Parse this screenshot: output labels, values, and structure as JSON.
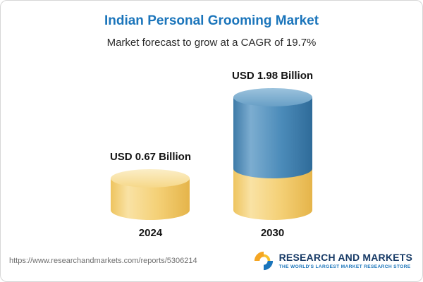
{
  "header": {
    "title": "Indian Personal Grooming Market",
    "subtitle": "Market forecast to grow at a CAGR of 19.7%"
  },
  "chart_data": {
    "type": "bar",
    "title": "Indian Personal Grooming Market",
    "subtitle": "Market forecast to grow at a CAGR of 19.7%",
    "categories": [
      "2024",
      "2030"
    ],
    "values": [
      0.67,
      1.98
    ],
    "value_labels": [
      "USD 0.67 Billion",
      "USD 1.98 Billion"
    ],
    "unit": "USD Billion",
    "cagr": "19.7%",
    "ylim": [
      0,
      2.2
    ],
    "grid": false,
    "legend": "none",
    "colors": {
      "bar_2024": "#f4d076",
      "bar_2030_growth": "#4c8cba",
      "bar_2030_base": "#f4d076",
      "title": "#1b75bb"
    }
  },
  "footer": {
    "url": "https://www.researchandmarkets.com/reports/5306214",
    "logo_text": "RESEARCH AND MARKETS",
    "logo_tagline": "THE WORLD'S LARGEST MARKET RESEARCH STORE"
  }
}
